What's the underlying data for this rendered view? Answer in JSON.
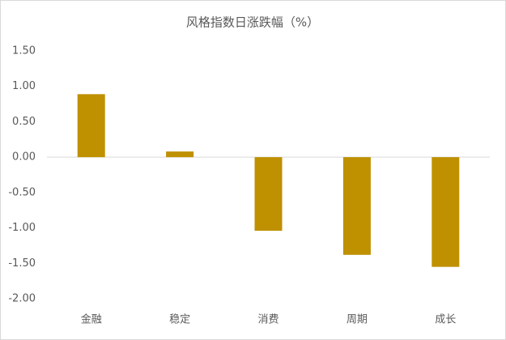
{
  "chart_data": {
    "type": "bar",
    "title": "风格指数日涨跌幅（%）",
    "categories": [
      "金融",
      "稳定",
      "消费",
      "周期",
      "成长"
    ],
    "values": [
      0.89,
      0.08,
      -1.04,
      -1.38,
      -1.55
    ],
    "color": "#bf9000",
    "ylim": [
      -2,
      1.5
    ],
    "yticks": [
      {
        "value": 1.5,
        "label": "1.50"
      },
      {
        "value": 1,
        "label": "1.00"
      },
      {
        "value": 0.5,
        "label": "0.50"
      },
      {
        "value": 0,
        "label": "0.00"
      },
      {
        "value": -0.5,
        "label": "-0.50"
      },
      {
        "value": -1,
        "label": "-1.00"
      },
      {
        "value": -1.5,
        "label": "-1.50"
      },
      {
        "value": -2,
        "label": "-2.00"
      }
    ],
    "grid": false
  }
}
